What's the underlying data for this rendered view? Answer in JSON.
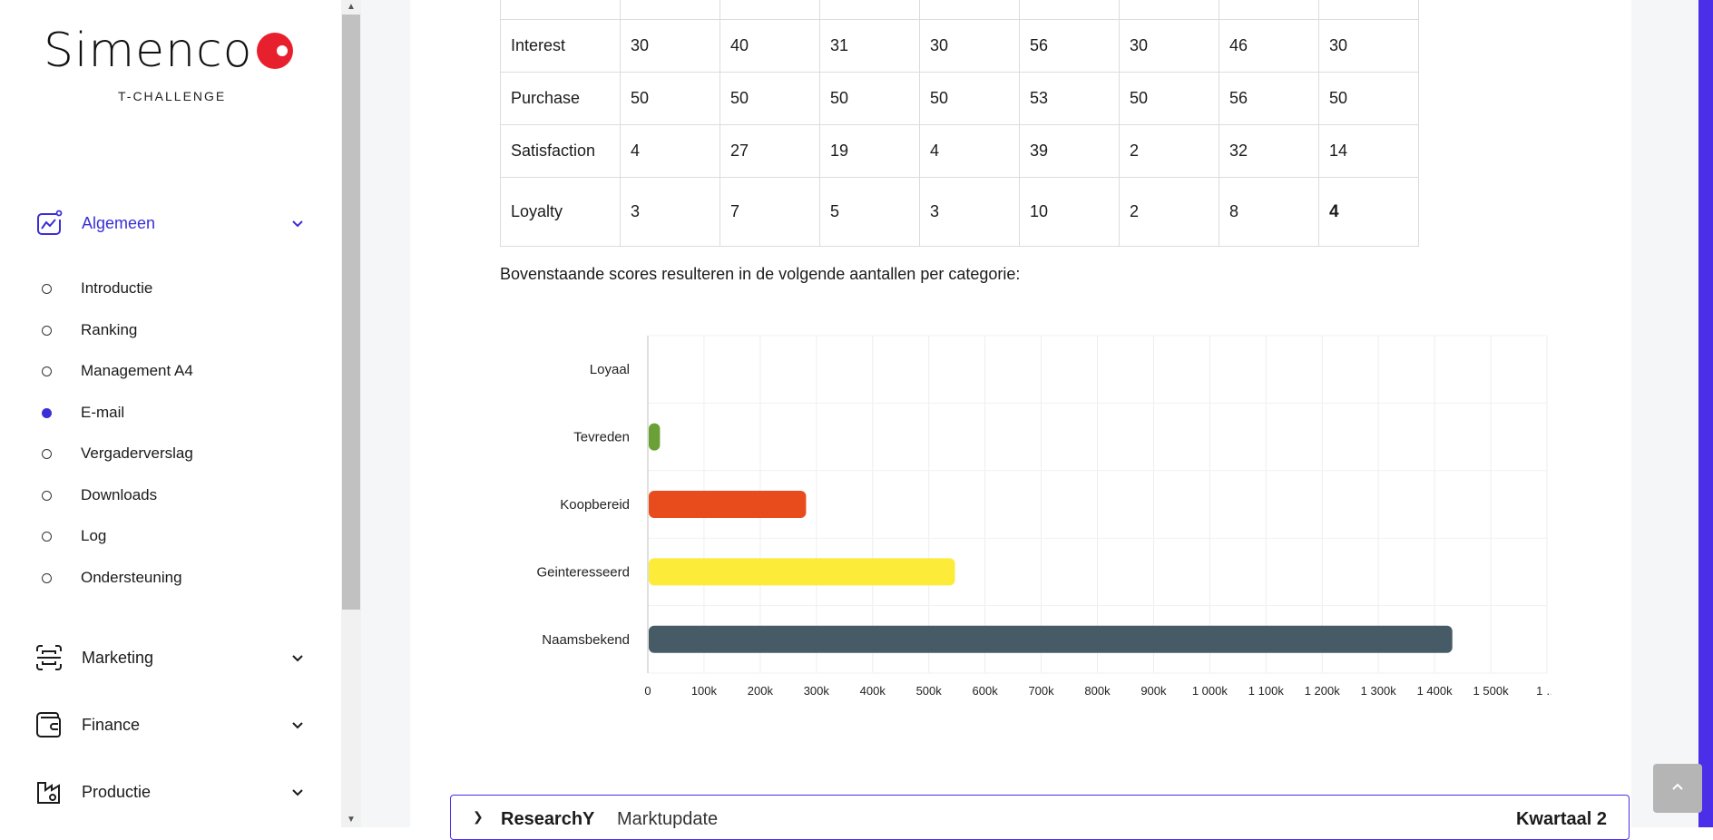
{
  "brand": {
    "name": "Simenco",
    "tagline": "T-CHALLENGE"
  },
  "sidebar": {
    "sections": [
      {
        "label": "Algemeen",
        "icon": "chart-trend-icon",
        "active": true
      },
      {
        "label": "Marketing",
        "icon": "scan-icon",
        "active": false
      },
      {
        "label": "Finance",
        "icon": "wallet-icon",
        "active": false
      },
      {
        "label": "Productie",
        "icon": "factory-icon",
        "active": false
      }
    ],
    "items": [
      {
        "label": "Introductie",
        "active": false
      },
      {
        "label": "Ranking",
        "active": false
      },
      {
        "label": "Management A4",
        "active": false
      },
      {
        "label": "E-mail",
        "active": true
      },
      {
        "label": "Vergaderverslag",
        "active": false
      },
      {
        "label": "Downloads",
        "active": false
      },
      {
        "label": "Log",
        "active": false
      },
      {
        "label": "Ondersteuning",
        "active": false
      }
    ]
  },
  "table": {
    "rows": [
      {
        "label": "",
        "values": [
          "",
          "",
          "",
          "",
          "",
          "",
          "",
          ""
        ]
      },
      {
        "label": "Interest",
        "values": [
          "30",
          "40",
          "31",
          "30",
          "56",
          "30",
          "46",
          "30"
        ]
      },
      {
        "label": "Purchase",
        "values": [
          "50",
          "50",
          "50",
          "50",
          "53",
          "50",
          "56",
          "50"
        ]
      },
      {
        "label": "Satisfaction",
        "values": [
          "4",
          "27",
          "19",
          "4",
          "39",
          "2",
          "32",
          "14"
        ]
      },
      {
        "label": "Loyalty",
        "values": [
          "3",
          "7",
          "5",
          "3",
          "10",
          "2",
          "8",
          "4"
        ]
      }
    ]
  },
  "description": "Bovenstaande scores resulteren in de volgende aantallen per categorie:",
  "chart_data": {
    "type": "bar",
    "orientation": "horizontal",
    "categories": [
      "Loyaal",
      "Tevreden",
      "Koopbereid",
      "Geinteresseerd",
      "Naamsbekend"
    ],
    "values": [
      0,
      20000,
      280000,
      545000,
      1430000
    ],
    "colors": [
      "#3a2ed6",
      "#6aa036",
      "#e84c1c",
      "#fdeb3a",
      "#475b66"
    ],
    "xlim": [
      0,
      1600000
    ],
    "xticks": [
      "0",
      "100k",
      "200k",
      "300k",
      "400k",
      "500k",
      "600k",
      "700k",
      "800k",
      "900k",
      "1 000k",
      "1 100k",
      "1 200k",
      "1 300k",
      "1 400k",
      "1 500k",
      "1 …"
    ],
    "grid": true,
    "title": "",
    "xlabel": "",
    "ylabel": ""
  },
  "card": {
    "title": "ResearchY",
    "subtitle": "Marktupdate",
    "right": "Kwartaal 2"
  },
  "colors": {
    "accent": "#3a2ed6",
    "brand_red": "#e8202e",
    "right_bar": "#4a2ee8"
  }
}
